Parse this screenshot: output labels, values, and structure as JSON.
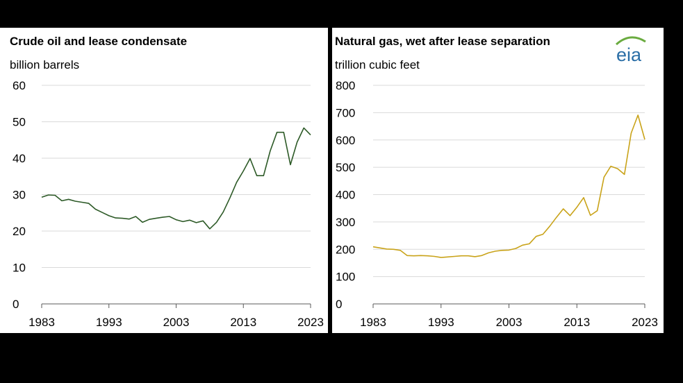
{
  "logo": {
    "text": "eia",
    "color": "#2a6ea6",
    "arc_color": "#6aab3f"
  },
  "chart_data": [
    {
      "type": "line",
      "title": "Crude oil and lease condensate",
      "ylabel": "billion barrels",
      "xlabel": "",
      "ylim": [
        0,
        60
      ],
      "yticks": [
        "60",
        "50",
        "40",
        "30",
        "20",
        "10",
        "0"
      ],
      "ytick_values": [
        60,
        50,
        40,
        30,
        20,
        10,
        0
      ],
      "xticks": [
        "1983",
        "1993",
        "2003",
        "2013",
        "2023"
      ],
      "xtick_values": [
        1983,
        1993,
        2003,
        2013,
        2023
      ],
      "xlim": [
        1983,
        2023
      ],
      "grid": true,
      "color": "#2d5a27",
      "series": [
        {
          "x": [
            1983,
            1984,
            1985,
            1986,
            1987,
            1988,
            1989,
            1990,
            1991,
            1992,
            1993,
            1994,
            1995,
            1996,
            1997,
            1998,
            1999,
            2000,
            2001,
            2002,
            2003,
            2004,
            2005,
            2006,
            2007,
            2008,
            2009,
            2010,
            2011,
            2012,
            2013,
            2014,
            2015,
            2016,
            2017,
            2018,
            2019,
            2020,
            2021,
            2022,
            2023
          ],
          "values": [
            29.3,
            29.9,
            29.8,
            28.3,
            28.7,
            28.2,
            27.9,
            27.6,
            26.0,
            25.1,
            24.2,
            23.6,
            23.5,
            23.3,
            24.0,
            22.4,
            23.2,
            23.5,
            23.8,
            24.0,
            23.1,
            22.6,
            23.0,
            22.3,
            22.8,
            20.6,
            22.4,
            25.2,
            29.1,
            33.4,
            36.5,
            39.9,
            35.2,
            35.2,
            42.0,
            47.1,
            47.1,
            38.2,
            44.4,
            48.3,
            46.4
          ]
        }
      ]
    },
    {
      "type": "line",
      "title": "Natural gas, wet after lease separation",
      "ylabel": "trillion cubic feet",
      "xlabel": "",
      "ylim": [
        0,
        800
      ],
      "yticks": [
        "800",
        "700",
        "600",
        "500",
        "400",
        "300",
        "200",
        "100",
        "0"
      ],
      "ytick_values": [
        800,
        700,
        600,
        500,
        400,
        300,
        200,
        100,
        0
      ],
      "xticks": [
        "1983",
        "1993",
        "2003",
        "2013",
        "2023"
      ],
      "xtick_values": [
        1983,
        1993,
        2003,
        2013,
        2023
      ],
      "xlim": [
        1983,
        2023
      ],
      "grid": true,
      "color": "#c9a319",
      "series": [
        {
          "x": [
            1983,
            1984,
            1985,
            1986,
            1987,
            1988,
            1989,
            1990,
            1991,
            1992,
            1993,
            1994,
            1995,
            1996,
            1997,
            1998,
            1999,
            2000,
            2001,
            2002,
            2003,
            2004,
            2005,
            2006,
            2007,
            2008,
            2009,
            2010,
            2011,
            2012,
            2013,
            2014,
            2015,
            2016,
            2017,
            2018,
            2019,
            2020,
            2021,
            2022,
            2023
          ],
          "values": [
            209,
            205,
            201,
            200,
            196,
            177,
            176,
            177,
            176,
            174,
            170,
            172,
            174,
            176,
            176,
            173,
            177,
            187,
            193,
            196,
            197,
            203,
            215,
            220,
            247,
            255,
            284,
            317,
            348,
            323,
            354,
            389,
            324,
            341,
            464,
            504,
            495,
            474,
            625,
            691,
            602
          ]
        }
      ]
    }
  ]
}
